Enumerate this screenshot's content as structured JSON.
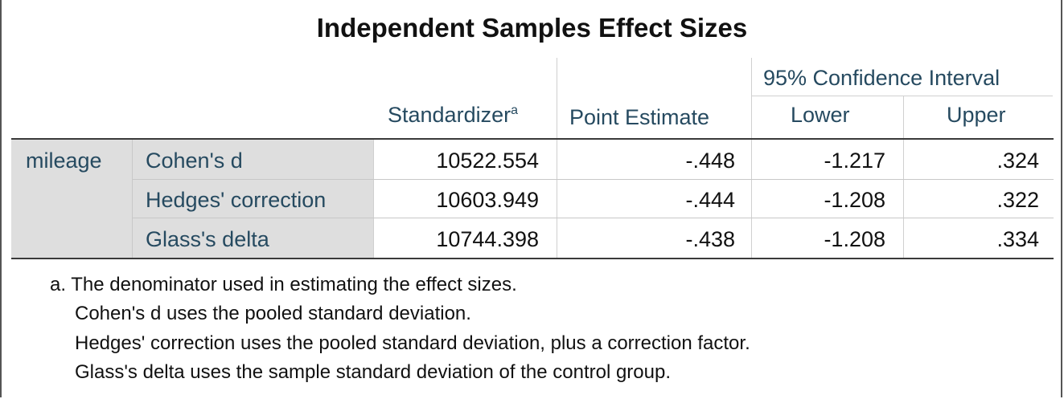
{
  "title": "Independent Samples Effect Sizes",
  "header": {
    "ci": "95% Confidence Interval",
    "standardizer": "Standardizer",
    "standardizer_sup": "a",
    "point_estimate": "Point Estimate",
    "lower": "Lower",
    "upper": "Upper"
  },
  "variable": "mileage",
  "rows": [
    {
      "label": "Cohen's d",
      "standardizer": "10522.554",
      "point": "-.448",
      "lower": "-1.217",
      "upper": ".324"
    },
    {
      "label": "Hedges' correction",
      "standardizer": "10603.949",
      "point": "-.444",
      "lower": "-1.208",
      "upper": ".322"
    },
    {
      "label": "Glass's delta",
      "standardizer": "10744.398",
      "point": "-.438",
      "lower": "-1.208",
      "upper": ".334"
    }
  ],
  "footnotes": [
    "a. The denominator used in estimating the effect sizes.",
    "Cohen's d uses the pooled standard deviation.",
    "Hedges' correction uses the pooled standard deviation, plus a correction factor.",
    "Glass's delta uses the sample standard deviation of the control group."
  ]
}
